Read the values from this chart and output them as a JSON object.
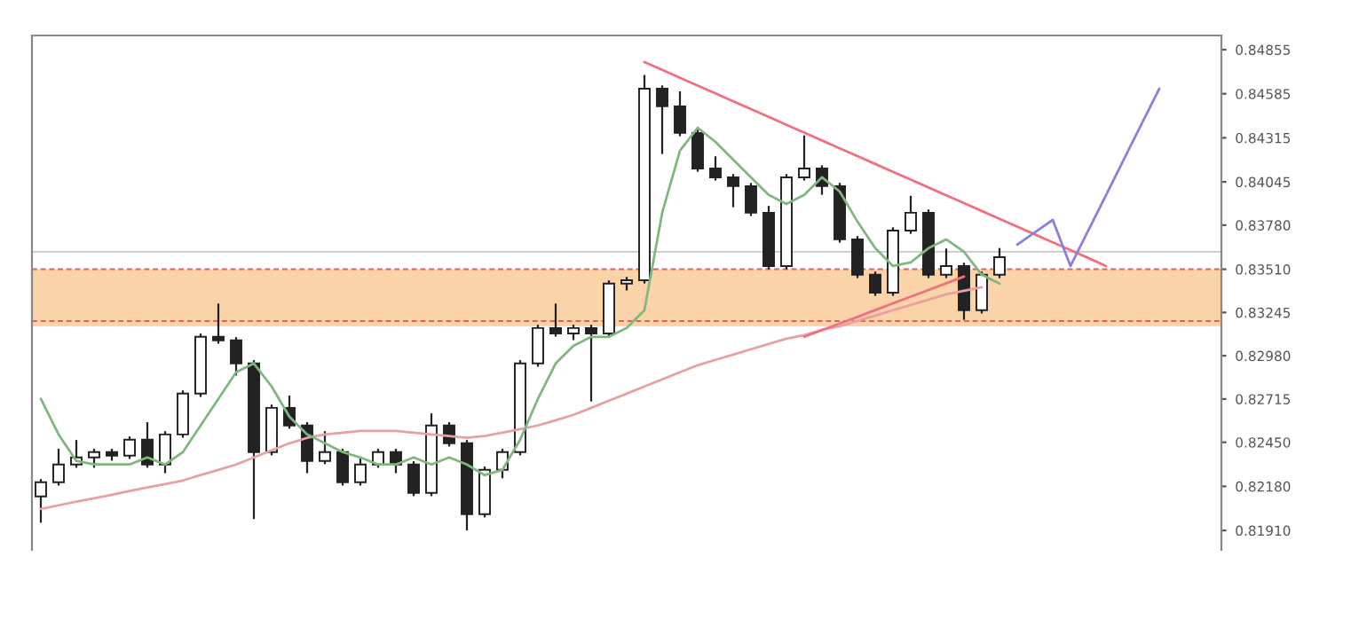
{
  "chart_data": {
    "type": "candlestick",
    "categories": [
      null,
      null,
      null,
      null,
      null,
      null,
      null,
      null,
      null,
      null,
      null,
      null,
      null,
      null,
      null,
      null,
      null,
      null,
      null,
      null,
      null,
      null,
      null,
      null,
      null,
      null,
      null,
      null,
      null,
      null,
      null,
      null,
      null,
      null,
      null,
      null,
      null,
      null,
      null,
      null,
      null,
      null,
      null,
      null,
      null,
      null,
      null,
      null,
      null,
      null,
      null,
      null,
      null,
      null,
      null,
      null,
      null,
      null,
      null,
      null,
      null,
      null,
      null,
      null,
      null,
      null,
      null
    ],
    "color": "#222222",
    "ohlc": [
      [
        0.82118,
        0.82225,
        0.81957,
        0.82205
      ],
      [
        0.82205,
        0.8241,
        0.82185,
        0.82314
      ],
      [
        0.82314,
        0.82464,
        0.82294,
        0.82357
      ],
      [
        0.82357,
        0.8241,
        0.82294,
        0.8239
      ],
      [
        0.8239,
        0.8241,
        0.82337,
        0.82368
      ],
      [
        0.82368,
        0.82486,
        0.82348,
        0.82466
      ],
      [
        0.82466,
        0.82573,
        0.82294,
        0.82314
      ],
      [
        0.82314,
        0.82518,
        0.82261,
        0.82498
      ],
      [
        0.82498,
        0.82768,
        0.82478,
        0.82748
      ],
      [
        0.82748,
        0.83116,
        0.82728,
        0.83096
      ],
      [
        0.83096,
        0.833,
        0.83054,
        0.83074
      ],
      [
        0.83074,
        0.83094,
        0.82859,
        0.82933
      ],
      [
        0.82933,
        0.82953,
        0.8198,
        0.8239
      ],
      [
        0.8239,
        0.82681,
        0.8237,
        0.82661
      ],
      [
        0.82661,
        0.82736,
        0.82533,
        0.82553
      ],
      [
        0.82553,
        0.82573,
        0.82261,
        0.82336
      ],
      [
        0.82336,
        0.82518,
        0.82316,
        0.8239
      ],
      [
        0.8239,
        0.8241,
        0.82185,
        0.82205
      ],
      [
        0.82205,
        0.82356,
        0.82185,
        0.82314
      ],
      [
        0.82314,
        0.8241,
        0.82294,
        0.8239
      ],
      [
        0.8239,
        0.8241,
        0.82261,
        0.82314
      ],
      [
        0.82314,
        0.82334,
        0.8212,
        0.8214
      ],
      [
        0.8214,
        0.82627,
        0.8212,
        0.82553
      ],
      [
        0.82553,
        0.82573,
        0.82424,
        0.82444
      ],
      [
        0.82444,
        0.82464,
        0.8191,
        0.8201
      ],
      [
        0.8201,
        0.82301,
        0.8199,
        0.82281
      ],
      [
        0.82281,
        0.8241,
        0.82229,
        0.8239
      ],
      [
        0.8239,
        0.82953,
        0.8237,
        0.82933
      ],
      [
        0.82933,
        0.8317,
        0.82913,
        0.8315
      ],
      [
        0.8315,
        0.833,
        0.83097,
        0.83117
      ],
      [
        0.83117,
        0.8317,
        0.83076,
        0.8315
      ],
      [
        0.8315,
        0.8317,
        0.827,
        0.83117
      ],
      [
        0.83117,
        0.83442,
        0.83097,
        0.83422
      ],
      [
        0.83422,
        0.83463,
        0.8338,
        0.83443
      ],
      [
        0.83443,
        0.847,
        0.83423,
        0.84616
      ],
      [
        0.84616,
        0.84636,
        0.84216,
        0.84508
      ],
      [
        0.84508,
        0.846,
        0.84325,
        0.84345
      ],
      [
        0.84345,
        0.84365,
        0.84107,
        0.84127
      ],
      [
        0.84127,
        0.84202,
        0.84053,
        0.84073
      ],
      [
        0.84073,
        0.84093,
        0.8389,
        0.84019
      ],
      [
        0.84019,
        0.84039,
        0.83836,
        0.83856
      ],
      [
        0.83856,
        0.83898,
        0.8351,
        0.8353
      ],
      [
        0.8353,
        0.84093,
        0.8351,
        0.84073
      ],
      [
        0.84073,
        0.8433,
        0.84053,
        0.84127
      ],
      [
        0.84127,
        0.84147,
        0.83966,
        0.84019
      ],
      [
        0.84019,
        0.84039,
        0.83673,
        0.83693
      ],
      [
        0.83693,
        0.83713,
        0.83456,
        0.83476
      ],
      [
        0.83476,
        0.83496,
        0.83347,
        0.83367
      ],
      [
        0.83367,
        0.83767,
        0.83347,
        0.83747
      ],
      [
        0.83747,
        0.8396,
        0.83727,
        0.83856
      ],
      [
        0.83856,
        0.83876,
        0.83456,
        0.83476
      ],
      [
        0.83476,
        0.83637,
        0.83456,
        0.8353
      ],
      [
        0.8353,
        0.8355,
        0.832,
        0.83259
      ],
      [
        0.83259,
        0.83496,
        0.83239,
        0.83476
      ],
      [
        0.83476,
        0.8364,
        0.83456,
        0.83584
      ],
      null,
      null,
      null,
      null,
      null,
      null,
      null,
      null,
      null,
      null,
      null,
      null
    ],
    "series": [
      {
        "type": "line",
        "color": "#e8a0a0",
        "values": [
          0.82042,
          0.82064,
          0.82086,
          0.82107,
          0.82129,
          0.82151,
          0.82173,
          0.82194,
          0.82216,
          0.82249,
          0.82281,
          0.82314,
          0.82357,
          0.82401,
          0.82444,
          0.82477,
          0.82498,
          0.82509,
          0.8252,
          0.8252,
          0.8252,
          0.82509,
          0.82498,
          0.82488,
          0.82477,
          0.82488,
          0.82509,
          0.82531,
          0.82553,
          0.82585,
          0.82618,
          0.82661,
          0.82705,
          0.82748,
          0.82792,
          0.82835,
          0.82879,
          0.82922,
          0.82955,
          0.82987,
          0.8302,
          0.83052,
          0.83085,
          0.83107,
          0.83139,
          0.83161,
          0.83193,
          0.83226,
          0.83259,
          0.83291,
          0.83324,
          0.83356,
          0.83378,
          0.834,
          null,
          null,
          null,
          null,
          null,
          null,
          null,
          null,
          null,
          null,
          null,
          null,
          null
        ]
      },
      {
        "type": "line",
        "color": "#7fb87f",
        "values": [
          0.82716,
          0.82498,
          0.82336,
          0.82314,
          0.82314,
          0.82314,
          0.82357,
          0.82314,
          0.8239,
          0.82553,
          0.82716,
          0.82879,
          0.82933,
          0.82792,
          0.82607,
          0.82498,
          0.82444,
          0.8239,
          0.82357,
          0.82314,
          0.82314,
          0.82357,
          0.82314,
          0.82357,
          0.82314,
          0.82249,
          0.82281,
          0.82466,
          0.82716,
          0.82933,
          0.83041,
          0.83096,
          0.83096,
          0.8315,
          0.83259,
          0.83856,
          0.84236,
          0.84377,
          0.8429,
          0.84182,
          0.84073,
          0.83965,
          0.8391,
          0.83965,
          0.84073,
          0.83986,
          0.83802,
          0.83639,
          0.8353,
          0.83552,
          0.83639,
          0.83693,
          0.83617,
          0.83476,
          0.83422,
          null,
          null,
          null,
          null,
          null,
          null,
          null,
          null,
          null,
          null,
          null,
          null
        ]
      },
      {
        "type": "line",
        "color": "#f07080",
        "values": [
          null,
          null,
          null,
          null,
          null,
          null,
          null,
          null,
          null,
          null,
          null,
          null,
          null,
          null,
          null,
          null,
          null,
          null,
          null,
          null,
          null,
          null,
          null,
          null,
          null,
          null,
          null,
          null,
          null,
          null,
          null,
          null,
          null,
          null,
          0.84779,
          0.84731,
          0.84683,
          0.84635,
          0.84587,
          0.84539,
          0.84491,
          0.84443,
          0.84395,
          0.84347,
          0.84299,
          0.84251,
          0.84203,
          0.84155,
          0.84107,
          0.84059,
          0.84011,
          0.83963,
          0.83915,
          0.83867,
          0.83819,
          0.83771,
          0.83723,
          0.83675,
          0.83627,
          0.83579,
          0.8353,
          null,
          null,
          null,
          null,
          null,
          null
        ]
      },
      {
        "type": "line",
        "color": "#f07080",
        "values": [
          null,
          null,
          null,
          null,
          null,
          null,
          null,
          null,
          null,
          null,
          null,
          null,
          null,
          null,
          null,
          null,
          null,
          null,
          null,
          null,
          null,
          null,
          null,
          null,
          null,
          null,
          null,
          null,
          null,
          null,
          null,
          null,
          null,
          null,
          null,
          null,
          null,
          null,
          null,
          null,
          null,
          null,
          null,
          0.83096,
          0.83137,
          0.83178,
          0.83218,
          0.8326,
          0.83301,
          0.83342,
          0.83383,
          0.83424,
          0.83465,
          null,
          null,
          null,
          null,
          null,
          null,
          null,
          null,
          null,
          null,
          null,
          null,
          null,
          null
        ]
      },
      {
        "type": "line",
        "color": "#8a7fe0",
        "values": [
          null,
          null,
          null,
          null,
          null,
          null,
          null,
          null,
          null,
          null,
          null,
          null,
          null,
          null,
          null,
          null,
          null,
          null,
          null,
          null,
          null,
          null,
          null,
          null,
          null,
          null,
          null,
          null,
          null,
          null,
          null,
          null,
          null,
          null,
          null,
          null,
          null,
          null,
          null,
          null,
          null,
          null,
          null,
          null,
          null,
          null,
          null,
          null,
          null,
          null,
          null,
          null,
          null,
          null,
          null,
          0.83661,
          0.83737,
          0.83812,
          0.8353,
          0.83747,
          0.83964,
          0.84182,
          0.84399,
          0.84616,
          null,
          null,
          null
        ]
      }
    ],
    "bands": [
      {
        "axis": "y",
        "from": 0.8316,
        "to": 0.8327,
        "color": "#fbd3a8"
      },
      {
        "axis": "y",
        "from": 0.8325,
        "to": 0.8351,
        "color": "#fbd3a8"
      }
    ],
    "ref_lines": [
      {
        "axis": "y",
        "value": 0.83617,
        "color": "#c8c8c8",
        "line_style": "solid"
      },
      {
        "axis": "y",
        "value": 0.8351,
        "color": "#e06060",
        "line_style": "dashed"
      },
      {
        "axis": "y",
        "value": 0.83193,
        "color": "#e06060",
        "line_style": "dashed"
      }
    ],
    "ylim": [
      0.81791,
      0.84942
    ],
    "yticks": [
      {
        "value": 0.8191,
        "label": "0.81910"
      },
      {
        "value": 0.8218,
        "label": "0.82180"
      },
      {
        "value": 0.8245,
        "label": "0.82450"
      },
      {
        "value": 0.82715,
        "label": "0.82715"
      },
      {
        "value": 0.8298,
        "label": "0.82980"
      },
      {
        "value": 0.83245,
        "label": "0.83245"
      },
      {
        "value": 0.8351,
        "label": "0.83510"
      },
      {
        "value": 0.8378,
        "label": "0.83780"
      },
      {
        "value": 0.84045,
        "label": "0.84045"
      },
      {
        "value": 0.84315,
        "label": "0.84315"
      },
      {
        "value": 0.84585,
        "label": "0.84585"
      },
      {
        "value": 0.84855,
        "label": "0.84855"
      }
    ],
    "tick_labels": "y"
  }
}
